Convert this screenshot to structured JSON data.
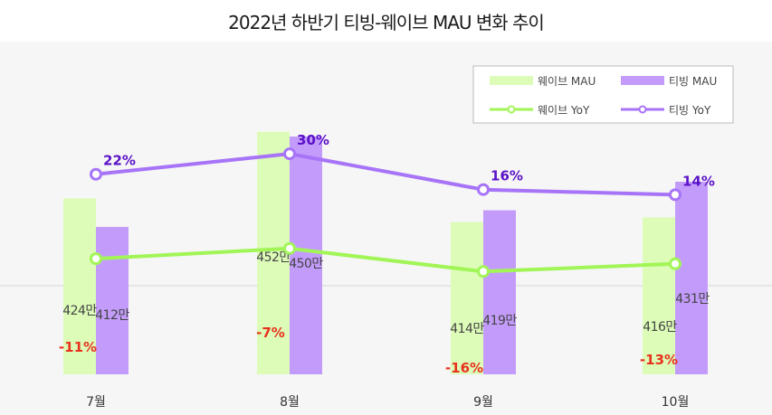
{
  "chart_data": {
    "type": "bar+line",
    "title": "2022년 하반기 티빙-웨이브 MAU 변화 추이",
    "categories": [
      "7월",
      "8월",
      "9월",
      "10월"
    ],
    "bar_series": [
      {
        "name": "웨이브 MAU",
        "values": [
          424,
          452,
          414,
          416
        ],
        "labels": [
          "424만",
          "452만",
          "414만",
          "416만"
        ],
        "color": "#dcfcb8"
      },
      {
        "name": "티빙 MAU",
        "values": [
          412,
          450,
          419,
          431
        ],
        "labels": [
          "412만",
          "450만",
          "419만",
          "431만"
        ],
        "color": "#c39cfb"
      }
    ],
    "line_series": [
      {
        "name": "웨이브 YoY",
        "values": [
          -11,
          -7,
          -16,
          -13
        ],
        "labels": [
          "-11%",
          "-7%",
          "-16%",
          "-13%"
        ],
        "color": "#a2f557",
        "label_color": "#e8321e"
      },
      {
        "name": "티빙 YoY",
        "values": [
          22,
          30,
          16,
          14
        ],
        "labels": [
          "22%",
          "30%",
          "16%",
          "14%"
        ],
        "color": "#a774f8",
        "label_color": "#5a12c8"
      }
    ],
    "legend_position": "top-right",
    "background": "#f6f6f6"
  }
}
